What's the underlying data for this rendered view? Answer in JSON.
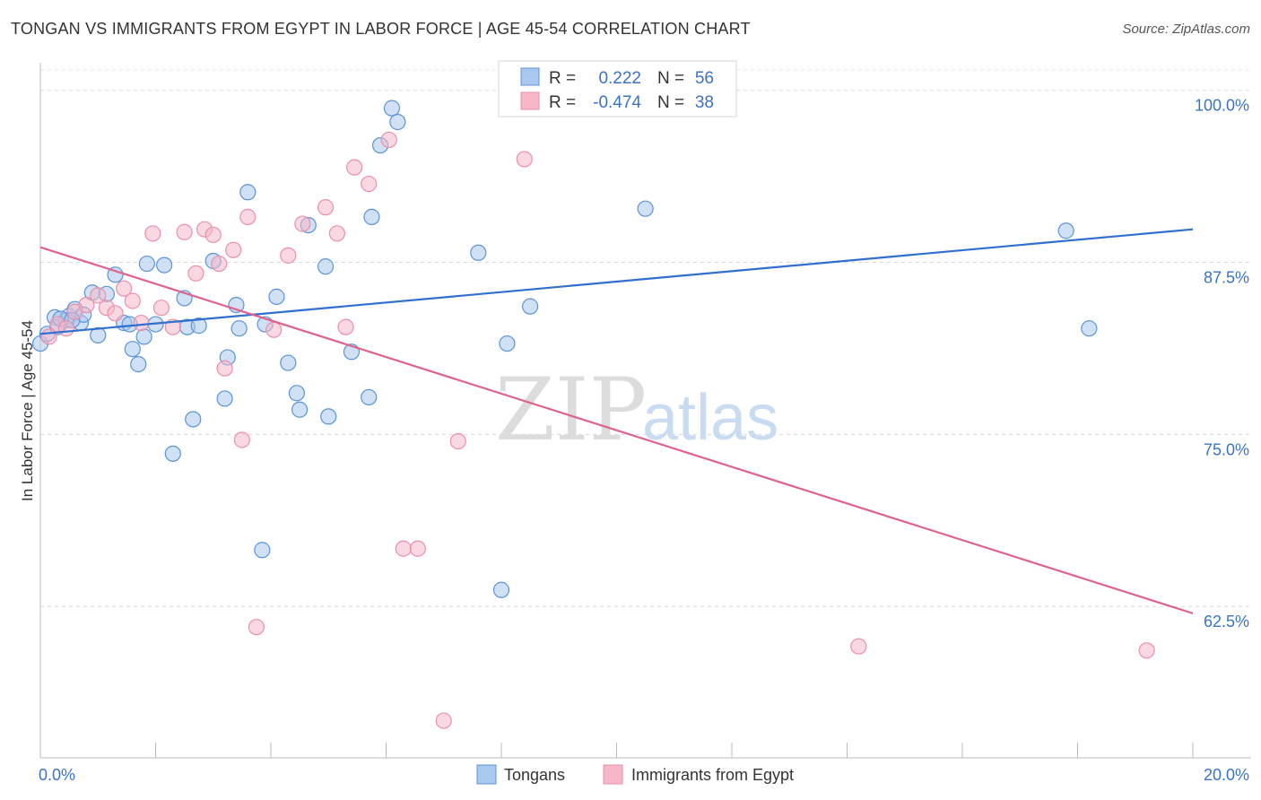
{
  "header": {
    "title": "TONGAN VS IMMIGRANTS FROM EGYPT IN LABOR FORCE | AGE 45-54 CORRELATION CHART",
    "source": "Source: ZipAtlas.com"
  },
  "watermark": {
    "zip": "ZIP",
    "atlas": "atlas"
  },
  "stats_box": {
    "rows": [
      {
        "r_label": "R =",
        "r_value": "0.222",
        "n_label": "N =",
        "n_value": "56",
        "color": "#a9c8ee"
      },
      {
        "r_label": "R =",
        "r_value": "-0.474",
        "n_label": "N =",
        "n_value": "38",
        "color": "#f6b8c9"
      }
    ]
  },
  "legend": {
    "items": [
      {
        "label": "Tongans",
        "color": "#a9c8ee"
      },
      {
        "label": "Immigrants from Egypt",
        "color": "#f6b8c9"
      }
    ]
  },
  "chart_data": {
    "type": "scatter",
    "title": "TONGAN VS IMMIGRANTS FROM EGYPT IN LABOR FORCE | AGE 45-54 CORRELATION CHART",
    "xlabel": "",
    "ylabel": "In Labor Force | Age 45-54",
    "xlim": [
      0,
      20
    ],
    "ylim": [
      51.5,
      102
    ],
    "x_tick_labels": [
      "0.0%",
      "20.0%"
    ],
    "y_ticks": [
      62.5,
      75.0,
      87.5,
      100.0
    ],
    "y_tick_labels": [
      "62.5%",
      "75.0%",
      "87.5%",
      "100.0%"
    ],
    "grid": "horizontal dashed",
    "legend_position": "bottom-center",
    "series": [
      {
        "name": "Tongans",
        "color": "#5b93d8",
        "fill": "#a9c8ee",
        "trend": {
          "x": [
            0,
            20
          ],
          "y": [
            82.3,
            89.9
          ],
          "color": "#2f6fcf"
        },
        "x": [
          0.0,
          0.12,
          0.25,
          0.3,
          0.45,
          0.5,
          0.7,
          0.6,
          0.75,
          0.9,
          1.0,
          1.15,
          1.3,
          1.45,
          1.55,
          1.6,
          1.7,
          1.8,
          1.85,
          2.0,
          2.15,
          2.3,
          2.5,
          2.55,
          2.65,
          2.75,
          3.0,
          3.2,
          3.25,
          3.4,
          3.45,
          3.6,
          3.85,
          3.9,
          4.1,
          4.3,
          4.45,
          4.5,
          4.65,
          4.95,
          5.0,
          5.4,
          5.7,
          5.75,
          5.9,
          6.1,
          6.2,
          7.6,
          8.0,
          8.1,
          8.5,
          10.5,
          17.8,
          18.2,
          0.35,
          0.55
        ],
        "y": [
          81.6,
          82.3,
          83.5,
          82.8,
          83.3,
          83.6,
          83.1,
          84.1,
          83.7,
          85.3,
          82.2,
          85.2,
          86.6,
          83.1,
          83.0,
          81.2,
          80.1,
          82.1,
          87.4,
          83.0,
          87.3,
          73.6,
          84.9,
          82.8,
          76.1,
          82.9,
          87.6,
          77.6,
          80.6,
          84.4,
          82.7,
          92.6,
          66.6,
          83.0,
          85.0,
          80.2,
          78.0,
          76.8,
          90.2,
          87.2,
          76.3,
          81.0,
          77.7,
          90.8,
          96.0,
          98.7,
          97.7,
          88.2,
          63.7,
          81.6,
          84.3,
          91.4,
          89.8,
          82.7,
          83.4,
          83.3
        ]
      },
      {
        "name": "Immigrants from Egypt",
        "color": "#ea8fab",
        "fill": "#f6b8c9",
        "trend": {
          "x": [
            0,
            20
          ],
          "y": [
            88.6,
            62.0
          ],
          "color": "#e0628c"
        },
        "x": [
          0.15,
          0.3,
          0.45,
          0.6,
          0.8,
          1.0,
          1.15,
          1.3,
          1.45,
          1.6,
          1.75,
          1.95,
          2.1,
          2.3,
          2.5,
          2.7,
          2.85,
          3.0,
          3.1,
          3.2,
          3.35,
          3.5,
          3.6,
          3.75,
          4.05,
          4.3,
          4.55,
          4.95,
          5.15,
          5.3,
          5.45,
          5.7,
          6.05,
          6.3,
          6.55,
          7.0,
          7.25,
          8.4
        ],
        "y": [
          82.1,
          83.0,
          82.7,
          83.9,
          84.4,
          85.1,
          84.2,
          83.8,
          85.6,
          84.7,
          83.1,
          89.6,
          84.2,
          82.8,
          89.7,
          86.7,
          89.9,
          89.5,
          87.4,
          79.8,
          88.4,
          74.6,
          90.8,
          61.0,
          82.6,
          88.0,
          90.3,
          91.5,
          89.6,
          82.8,
          94.4,
          93.2,
          96.4,
          66.7,
          66.7,
          54.2,
          74.5,
          95.0
        ]
      }
    ],
    "extra_points": [
      {
        "series": "Immigrants from Egypt",
        "x": 14.2,
        "y": 59.6
      },
      {
        "series": "Immigrants from Egypt",
        "x": 19.2,
        "y": 59.3
      }
    ]
  }
}
